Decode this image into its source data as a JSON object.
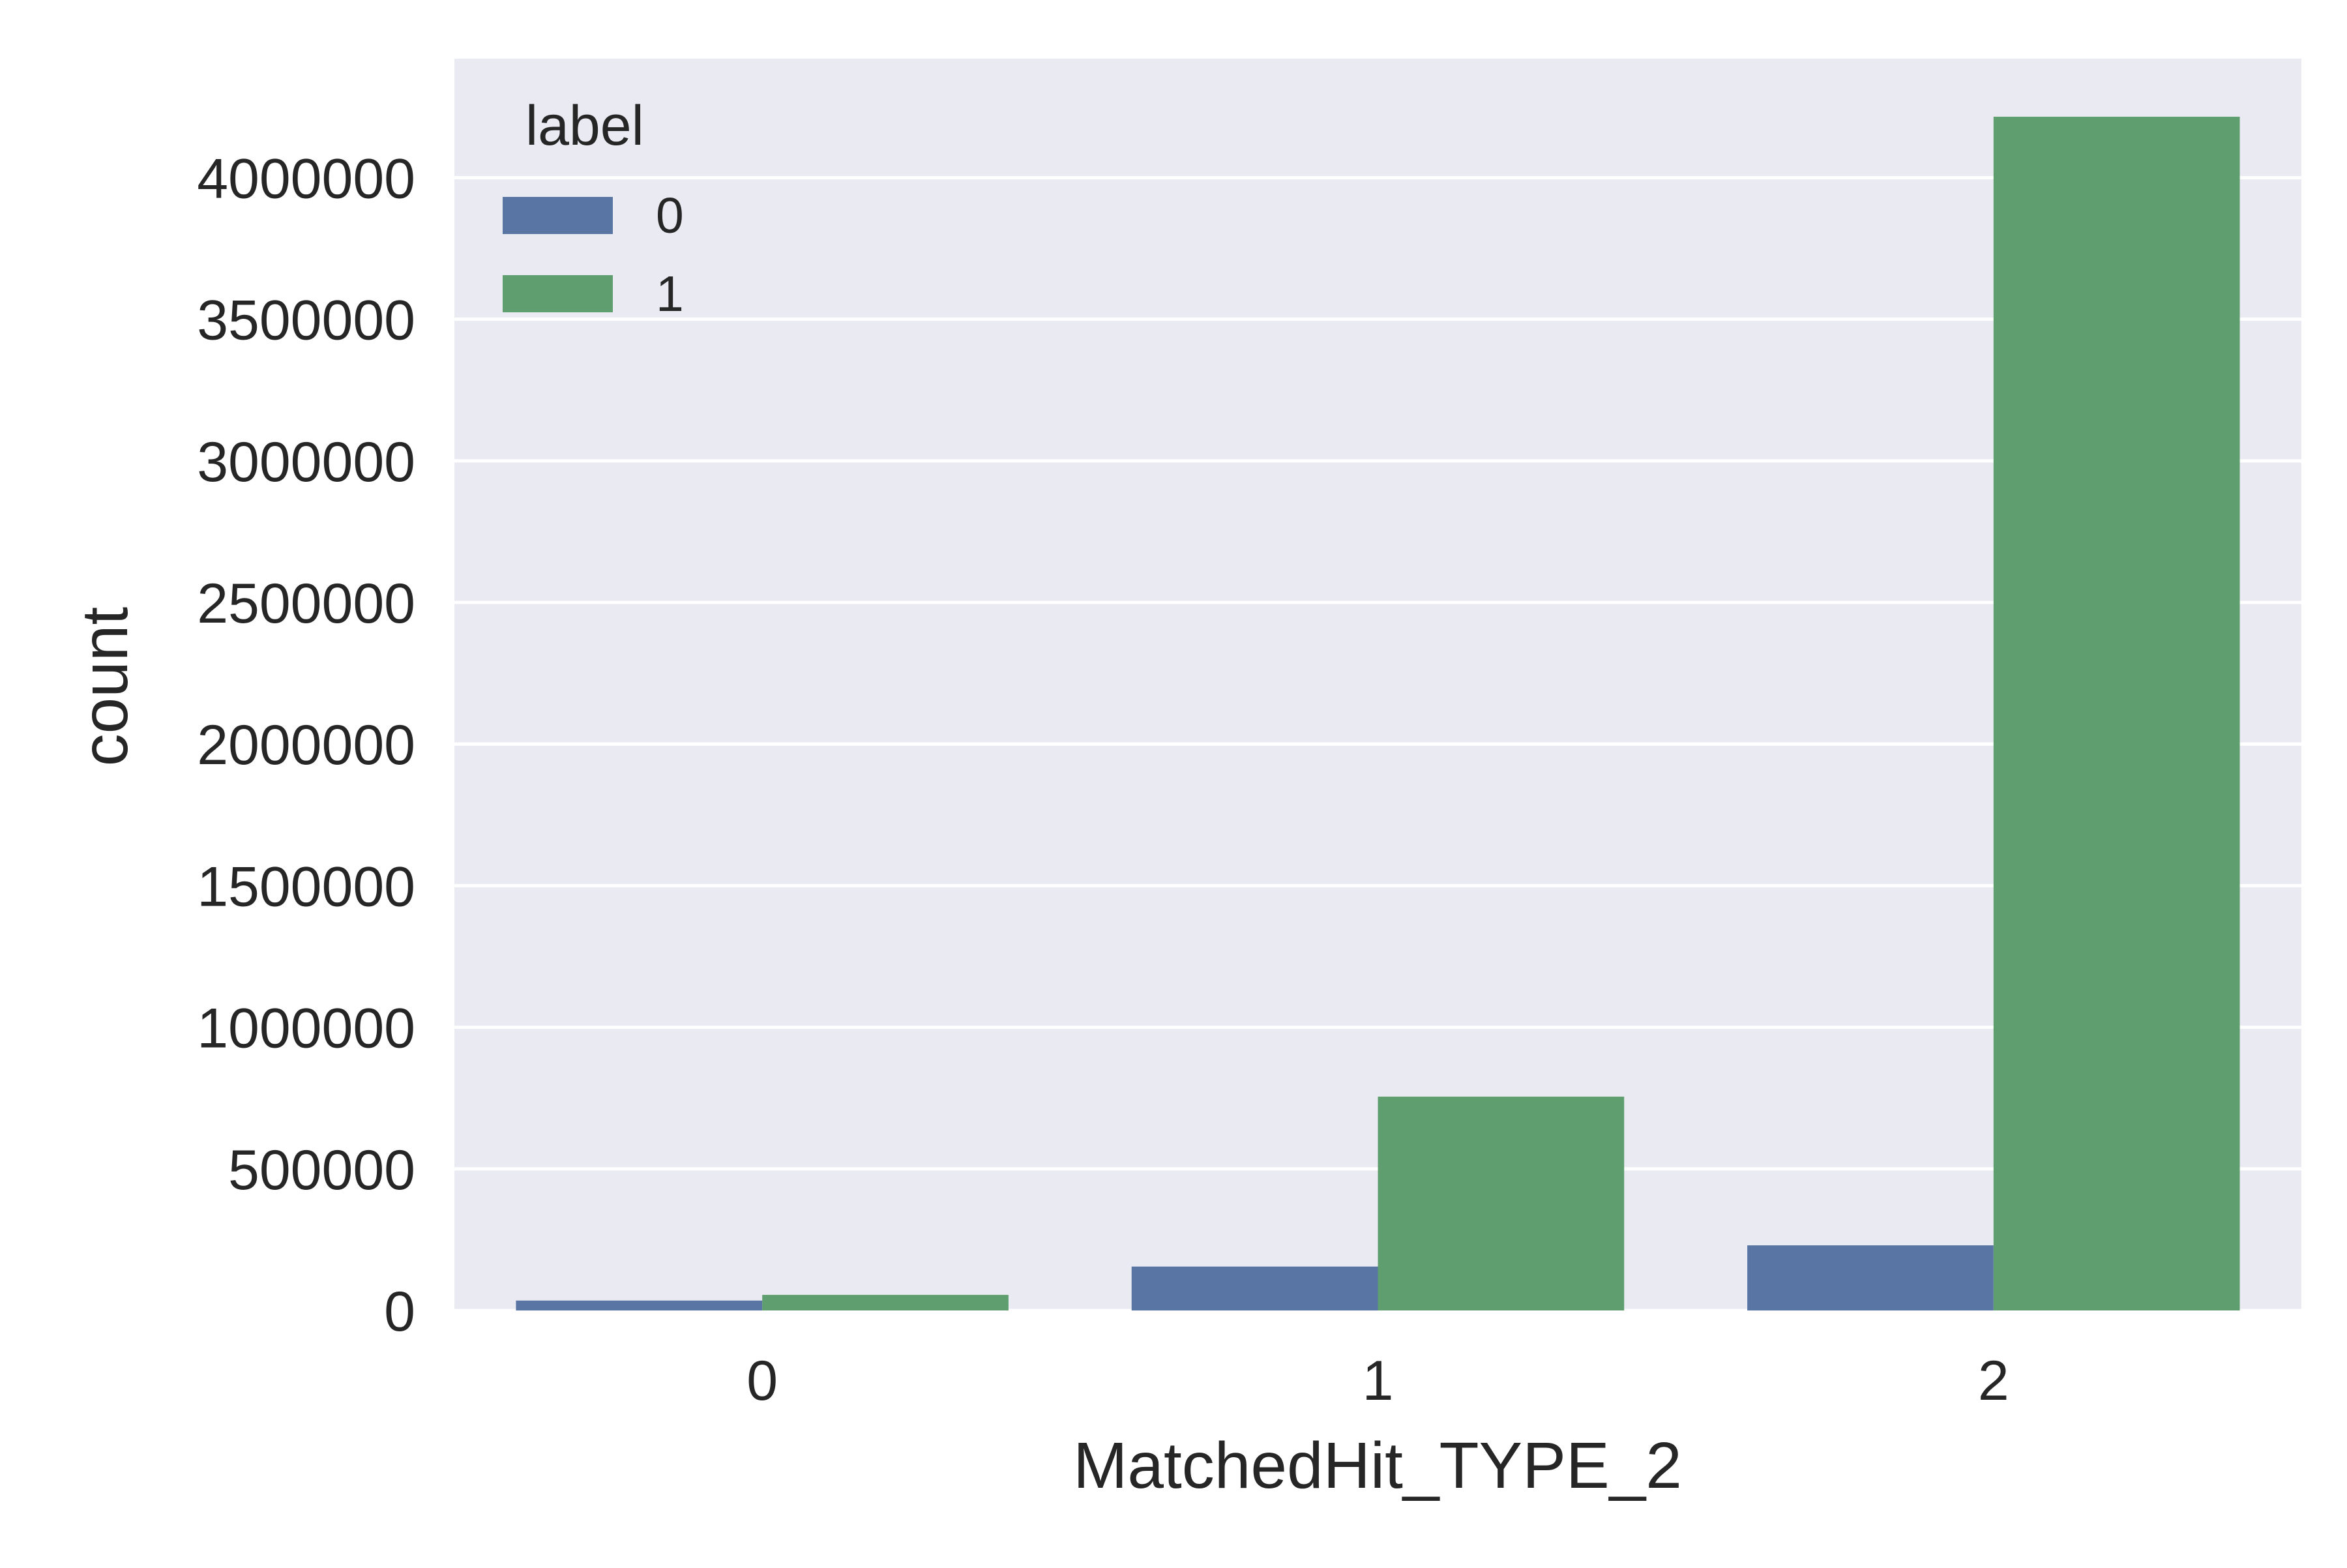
{
  "chart_data": {
    "type": "bar",
    "title": "",
    "xlabel": "MatchedHit_TYPE_2",
    "ylabel": "count",
    "categories": [
      "0",
      "1",
      "2"
    ],
    "series": [
      {
        "name": "0",
        "values": [
          35000,
          155000,
          230000
        ]
      },
      {
        "name": "1",
        "values": [
          55000,
          755000,
          4215000
        ]
      }
    ],
    "ylim": [
      0,
      4420000
    ],
    "yticks": [
      0,
      500000,
      1000000,
      1500000,
      2000000,
      2500000,
      3000000,
      3500000,
      4000000
    ],
    "ytick_labels": [
      "0",
      "500000",
      "1000000",
      "1500000",
      "2000000",
      "2500000",
      "3000000",
      "3500000",
      "4000000"
    ],
    "grid": true,
    "legend": {
      "title": "label",
      "placement": "top-left"
    },
    "colors": [
      "#5875a4",
      "#5f9e6e"
    ],
    "background": "#eaeaf2"
  }
}
